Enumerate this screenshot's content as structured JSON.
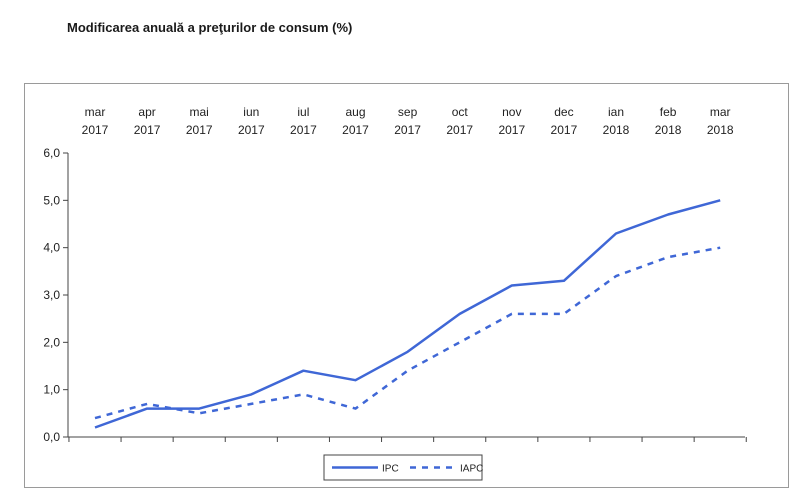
{
  "title": "Modificarea anuală a preţurilor de consum (%)",
  "chart_data": {
    "type": "line",
    "categories": [
      {
        "month": "mar",
        "year": "2017"
      },
      {
        "month": "apr",
        "year": "2017"
      },
      {
        "month": "mai",
        "year": "2017"
      },
      {
        "month": "iun",
        "year": "2017"
      },
      {
        "month": "iul",
        "year": "2017"
      },
      {
        "month": "aug",
        "year": "2017"
      },
      {
        "month": "sep",
        "year": "2017"
      },
      {
        "month": "oct",
        "year": "2017"
      },
      {
        "month": "nov",
        "year": "2017"
      },
      {
        "month": "dec",
        "year": "2017"
      },
      {
        "month": "ian",
        "year": "2018"
      },
      {
        "month": "feb",
        "year": "2018"
      },
      {
        "month": "mar",
        "year": "2018"
      }
    ],
    "series": [
      {
        "name": "IPC",
        "style": "solid",
        "color": "#3f67d6",
        "values": [
          0.2,
          0.6,
          0.6,
          0.9,
          1.4,
          1.2,
          1.8,
          2.6,
          3.2,
          3.3,
          4.3,
          4.7,
          5.0
        ]
      },
      {
        "name": "IAPC",
        "style": "dashed",
        "color": "#3f67d6",
        "values": [
          0.4,
          0.7,
          0.5,
          0.7,
          0.9,
          0.6,
          1.4,
          2.0,
          2.6,
          2.6,
          3.4,
          3.8,
          4.0
        ]
      }
    ],
    "ylim": [
      0,
      6
    ],
    "yticks": [
      "0,0",
      "1,0",
      "2,0",
      "3,0",
      "4,0",
      "5,0",
      "6,0"
    ],
    "legend_position": "bottom-center",
    "grid": false
  }
}
